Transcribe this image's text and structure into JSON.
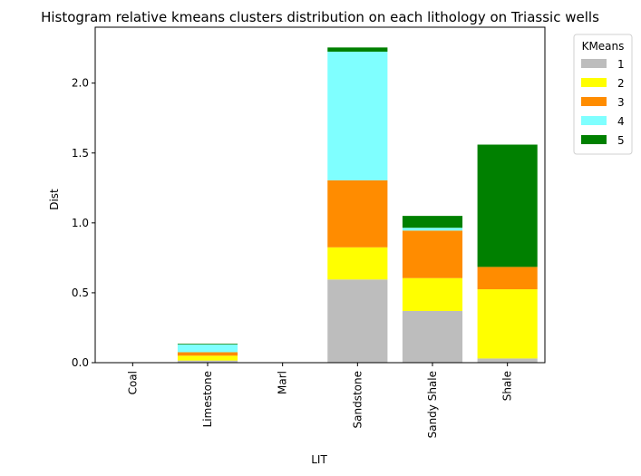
{
  "chart_data": {
    "type": "bar",
    "stacked": true,
    "title": "Histogram relative kmeans clusters distribution on each lithology on Triassic wells",
    "xlabel": "LIT",
    "ylabel": "Dist",
    "categories": [
      "Coal",
      "Limestone",
      "Marl",
      "Sandstone",
      "Sandy Shale",
      "Shale"
    ],
    "ylim": [
      0,
      2.4
    ],
    "yticks": [
      "0.0",
      "0.5",
      "1.0",
      "1.5",
      "2.0"
    ],
    "legend": {
      "title": "KMeans",
      "placement": "outside-top-right"
    },
    "series": [
      {
        "name": "1",
        "color": "#bdbdbd",
        "values": [
          0,
          0.015,
          0,
          0.595,
          0.37,
          0.03
        ]
      },
      {
        "name": "2",
        "color": "#ffff00",
        "values": [
          0,
          0.035,
          0,
          0.23,
          0.235,
          0.495
        ]
      },
      {
        "name": "3",
        "color": "#ff8c00",
        "values": [
          0,
          0.025,
          0,
          0.48,
          0.34,
          0.16
        ]
      },
      {
        "name": "4",
        "color": "#7fffff",
        "values": [
          0,
          0.055,
          0,
          0.92,
          0.02,
          0
        ]
      },
      {
        "name": "5",
        "color": "#008000",
        "values": [
          0,
          0.005,
          0,
          0.03,
          0.085,
          0.875
        ]
      }
    ]
  }
}
